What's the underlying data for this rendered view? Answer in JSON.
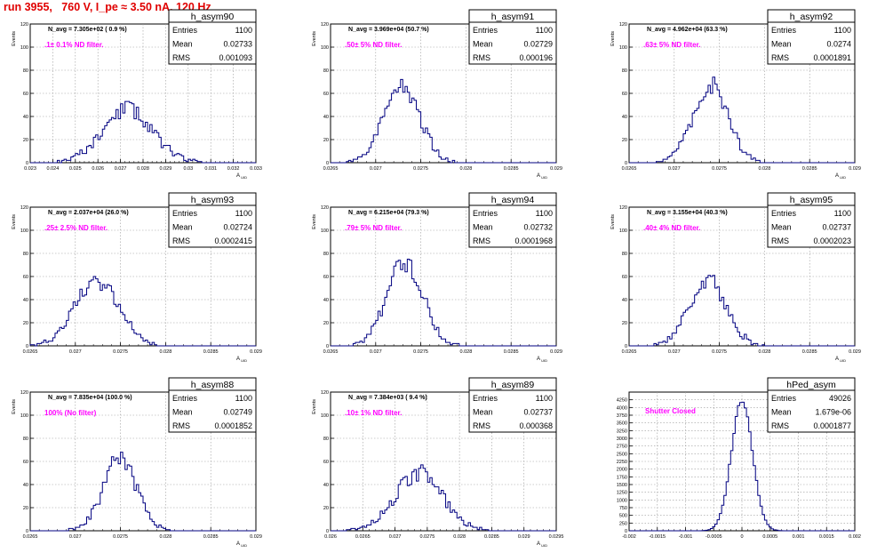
{
  "header": {
    "title": "run 3955,   760 V, I_pe ≈ 3.50 nA, 120 Hz"
  },
  "colors": {
    "title": "#e00000",
    "hist_line": "#000080",
    "filter_label": "#ff00ff",
    "grid": "#9a9a9a"
  },
  "stats_labels": {
    "entries": "Entries",
    "mean": "Mean",
    "rms": "RMS"
  },
  "chart_data": [
    {
      "type": "histogram",
      "name": "h_asym90",
      "navg_text": "N_avg = 7.305e+02 ( 0.9 %)",
      "filter_text": ".1± 0.1% ND filter.",
      "stats": {
        "entries": "1100",
        "mean": "0.02733",
        "rms": "0.001093"
      },
      "ylabel": "Events",
      "xlabel": "A_UID",
      "grid": true,
      "xlim": [
        0.023,
        0.033
      ],
      "ylim": [
        0,
        120
      ],
      "xticks": [
        "0.023",
        "0.024",
        "0.025",
        "0.026",
        "0.027",
        "0.028",
        "0.029",
        "0.03",
        "0.031",
        "0.032",
        "0.033"
      ],
      "yticks": [
        "0",
        "20",
        "40",
        "60",
        "80",
        "100",
        "120"
      ],
      "mean": 0.02733,
      "sigma": 0.001093,
      "peak": 46,
      "nbins": 100,
      "seed": 11
    },
    {
      "type": "histogram",
      "name": "h_asym91",
      "navg_text": "N_avg = 3.969e+04 (50.7 %)",
      "filter_text": ".50± 5% ND filter.",
      "stats": {
        "entries": "1100",
        "mean": "0.02729",
        "rms": "0.000196"
      },
      "ylabel": "Events",
      "xlabel": "A_UID",
      "grid": true,
      "xlim": [
        0.0265,
        0.029
      ],
      "ylim": [
        0,
        120
      ],
      "xticks": [
        "0.0265",
        "0.027",
        "0.0275",
        "0.028",
        "0.0285",
        "0.029"
      ],
      "yticks": [
        "0",
        "20",
        "40",
        "60",
        "80",
        "100",
        "120"
      ],
      "mean": 0.02729,
      "sigma": 0.000196,
      "peak": 66,
      "nbins": 100,
      "seed": 22
    },
    {
      "type": "histogram",
      "name": "h_asym92",
      "navg_text": "N_avg = 4.962e+04 (63.3 %)",
      "filter_text": ".63± 5% ND filter.",
      "stats": {
        "entries": "1100",
        "mean": "0.0274",
        "rms": "0.0001891"
      },
      "ylabel": "Events",
      "xlabel": "A_UID",
      "grid": true,
      "xlim": [
        0.0265,
        0.029
      ],
      "ylim": [
        0,
        120
      ],
      "xticks": [
        "0.0265",
        "0.027",
        "0.0275",
        "0.028",
        "0.0285",
        "0.029"
      ],
      "yticks": [
        "0",
        "20",
        "40",
        "60",
        "80",
        "100",
        "120"
      ],
      "mean": 0.0274,
      "sigma": 0.0001891,
      "peak": 69,
      "nbins": 100,
      "seed": 33
    },
    {
      "type": "histogram",
      "name": "h_asym93",
      "navg_text": "N_avg = 2.037e+04 (26.0 %)",
      "filter_text": ".25± 2.5% ND filter.",
      "stats": {
        "entries": "1100",
        "mean": "0.02724",
        "rms": "0.0002415"
      },
      "ylabel": "Events",
      "xlabel": "A_UID",
      "grid": true,
      "xlim": [
        0.0265,
        0.029
      ],
      "ylim": [
        0,
        120
      ],
      "xticks": [
        "0.0265",
        "0.027",
        "0.0275",
        "0.028",
        "0.0285",
        "0.029"
      ],
      "yticks": [
        "0",
        "20",
        "40",
        "60",
        "80",
        "100",
        "120"
      ],
      "mean": 0.02724,
      "sigma": 0.0002415,
      "peak": 56,
      "nbins": 100,
      "seed": 44
    },
    {
      "type": "histogram",
      "name": "h_asym94",
      "navg_text": "N_avg = 6.215e+04 (79.3 %)",
      "filter_text": ".79± 5% ND filter.",
      "stats": {
        "entries": "1100",
        "mean": "0.02732",
        "rms": "0.0001968"
      },
      "ylabel": "Events",
      "xlabel": "A_UID",
      "grid": true,
      "xlim": [
        0.0265,
        0.029
      ],
      "ylim": [
        0,
        120
      ],
      "xticks": [
        "0.0265",
        "0.027",
        "0.0275",
        "0.028",
        "0.0285",
        "0.029"
      ],
      "yticks": [
        "0",
        "20",
        "40",
        "60",
        "80",
        "100",
        "120"
      ],
      "mean": 0.02732,
      "sigma": 0.0001968,
      "peak": 73,
      "nbins": 100,
      "seed": 55
    },
    {
      "type": "histogram",
      "name": "h_asym95",
      "navg_text": "N_avg = 3.155e+04 (40.3 %)",
      "filter_text": ".40± 4% ND filter.",
      "stats": {
        "entries": "1100",
        "mean": "0.02737",
        "rms": "0.0002023"
      },
      "ylabel": "Events",
      "xlabel": "A_UID",
      "grid": true,
      "xlim": [
        0.0265,
        0.029
      ],
      "ylim": [
        0,
        120
      ],
      "xticks": [
        "0.0265",
        "0.027",
        "0.0275",
        "0.028",
        "0.0285",
        "0.029"
      ],
      "yticks": [
        "0",
        "20",
        "40",
        "60",
        "80",
        "100",
        "120"
      ],
      "mean": 0.02737,
      "sigma": 0.0002023,
      "peak": 58,
      "nbins": 100,
      "seed": 66
    },
    {
      "type": "histogram",
      "name": "h_asym88",
      "navg_text": "N_avg = 7.835e+04 (100.0 %)",
      "filter_text": "100% (No filter)",
      "stats": {
        "entries": "1100",
        "mean": "0.02749",
        "rms": "0.0001852"
      },
      "ylabel": "Events",
      "xlabel": "A_UID",
      "grid": true,
      "xlim": [
        0.0265,
        0.029
      ],
      "ylim": [
        0,
        120
      ],
      "xticks": [
        "0.0265",
        "0.027",
        "0.0275",
        "0.028",
        "0.0285",
        "0.029"
      ],
      "yticks": [
        "0",
        "20",
        "40",
        "60",
        "80",
        "100",
        "120"
      ],
      "mean": 0.02749,
      "sigma": 0.0001852,
      "peak": 61,
      "nbins": 100,
      "seed": 77
    },
    {
      "type": "histogram",
      "name": "h_asym89",
      "navg_text": "N_avg = 7.384e+03 ( 9.4 %)",
      "filter_text": ".10± 1% ND filter.",
      "stats": {
        "entries": "1100",
        "mean": "0.02737",
        "rms": "0.000368"
      },
      "ylabel": "Events",
      "xlabel": "A_UID",
      "grid": true,
      "xlim": [
        0.026,
        0.0295
      ],
      "ylim": [
        0,
        120
      ],
      "xticks": [
        "0.026",
        "0.0265",
        "0.027",
        "0.0275",
        "0.028",
        "0.0285",
        "0.029",
        "0.0295"
      ],
      "yticks": [
        "0",
        "20",
        "40",
        "60",
        "80",
        "100",
        "120"
      ],
      "mean": 0.02737,
      "sigma": 0.000368,
      "peak": 50,
      "nbins": 100,
      "seed": 88
    },
    {
      "type": "histogram",
      "name": "hPed_asym",
      "navg_text": "",
      "filter_text": "Shutter Closed",
      "stats": {
        "entries": "49026",
        "mean": "1.679e-06",
        "rms": "0.0001877"
      },
      "ylabel": "",
      "xlabel": "",
      "grid": true,
      "xlim": [
        -0.002,
        0.002
      ],
      "ylim": [
        0,
        4500
      ],
      "xticks": [
        "-0.002",
        "-0.0015",
        "-0.001",
        "-0.0005",
        "0",
        "0.0005",
        "0.001",
        "0.0015",
        "0.002"
      ],
      "yticks": [
        "0",
        "250",
        "500",
        "750",
        "1000",
        "1250",
        "1500",
        "1750",
        "2000",
        "2250",
        "2500",
        "2750",
        "3000",
        "3250",
        "3500",
        "3750",
        "4000",
        "4250"
      ],
      "mean": 0.0,
      "sigma": 0.0001877,
      "peak": 4200,
      "nbins": 100,
      "seed": 99
    }
  ]
}
